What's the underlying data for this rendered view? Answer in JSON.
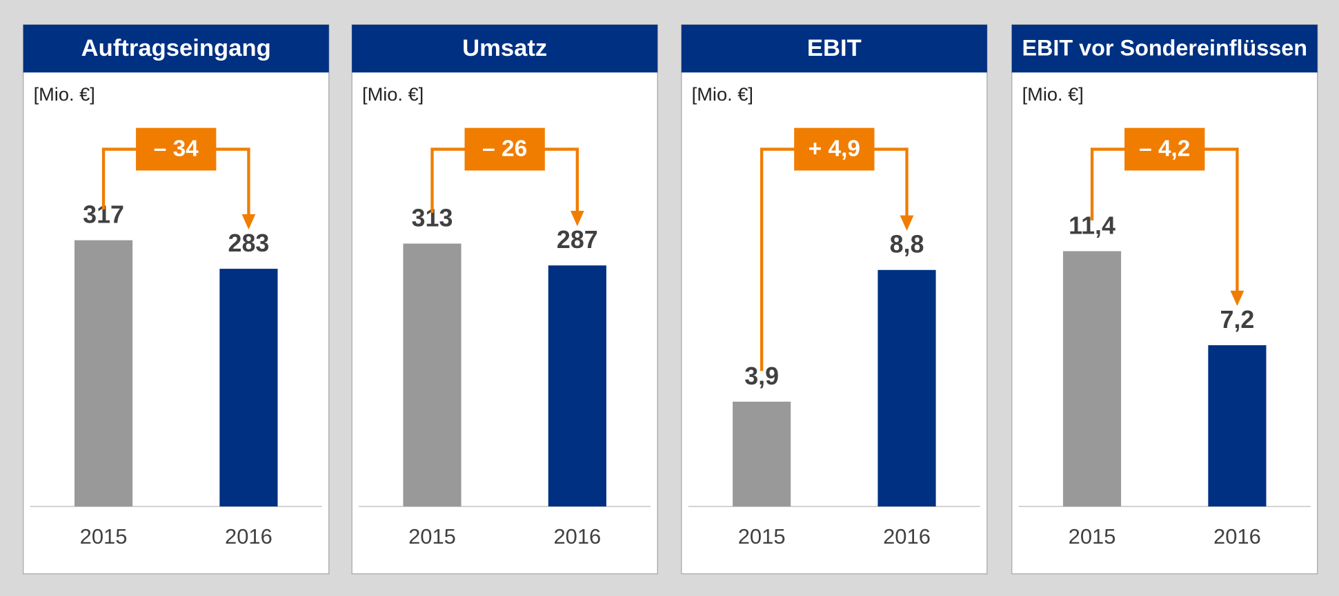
{
  "chart_data": [
    {
      "type": "bar",
      "title": "Auftragseingang",
      "unit": "[Mio. €]",
      "categories": [
        "2015",
        "2016"
      ],
      "values": [
        317,
        283
      ],
      "colors": [
        "#999999",
        "#003082"
      ],
      "ylim": [
        0,
        400
      ],
      "annotation": "– 34",
      "annotation_color": "#f07d00"
    },
    {
      "type": "bar",
      "title": "Umsatz",
      "unit": "[Mio. €]",
      "categories": [
        "2015",
        "2016"
      ],
      "values": [
        313,
        287
      ],
      "colors": [
        "#999999",
        "#003082"
      ],
      "ylim": [
        0,
        400
      ],
      "annotation": "– 26",
      "annotation_color": "#f07d00"
    },
    {
      "type": "bar",
      "title": "EBIT",
      "unit": "[Mio. €]",
      "categories": [
        "2015",
        "2016"
      ],
      "values": [
        3.9,
        8.8
      ],
      "value_labels": [
        "3,9",
        "8,8"
      ],
      "colors": [
        "#999999",
        "#003082"
      ],
      "ylim": [
        0,
        12.5
      ],
      "annotation": "+ 4,9",
      "annotation_color": "#f07d00"
    },
    {
      "type": "bar",
      "title": "EBIT vor Sondereinflüssen",
      "unit": "[Mio. €]",
      "categories": [
        "2015",
        "2016"
      ],
      "values": [
        11.4,
        7.2
      ],
      "value_labels": [
        "11,4",
        "7,2"
      ],
      "colors": [
        "#999999",
        "#003082"
      ],
      "ylim": [
        0,
        15
      ],
      "annotation": "– 4,2",
      "annotation_color": "#f07d00"
    }
  ]
}
